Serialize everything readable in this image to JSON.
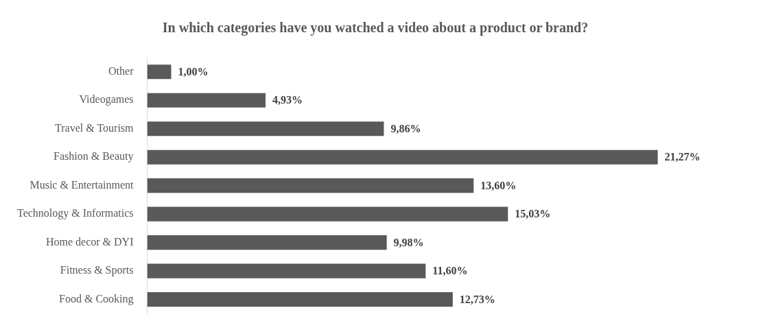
{
  "chart_data": {
    "type": "bar",
    "orientation": "horizontal",
    "title": "In which categories have you watched a video about a product or brand?",
    "categories": [
      "Other",
      "Videogames",
      "Travel & Tourism",
      "Fashion & Beauty",
      "Music & Entertainment",
      "Technology & Informatics",
      "Home decor & DYI",
      "Fitness & Sports",
      "Food & Cooking"
    ],
    "values": [
      1.0,
      4.93,
      9.86,
      21.27,
      13.6,
      15.03,
      9.98,
      11.6,
      12.73
    ],
    "value_labels": [
      "1,00%",
      "4,93%",
      "9,86%",
      "21,27%",
      "13,60%",
      "15,03%",
      "9,98%",
      "11,60%",
      "12,73%"
    ],
    "color": "#595959",
    "tick_labels": "y"
  }
}
